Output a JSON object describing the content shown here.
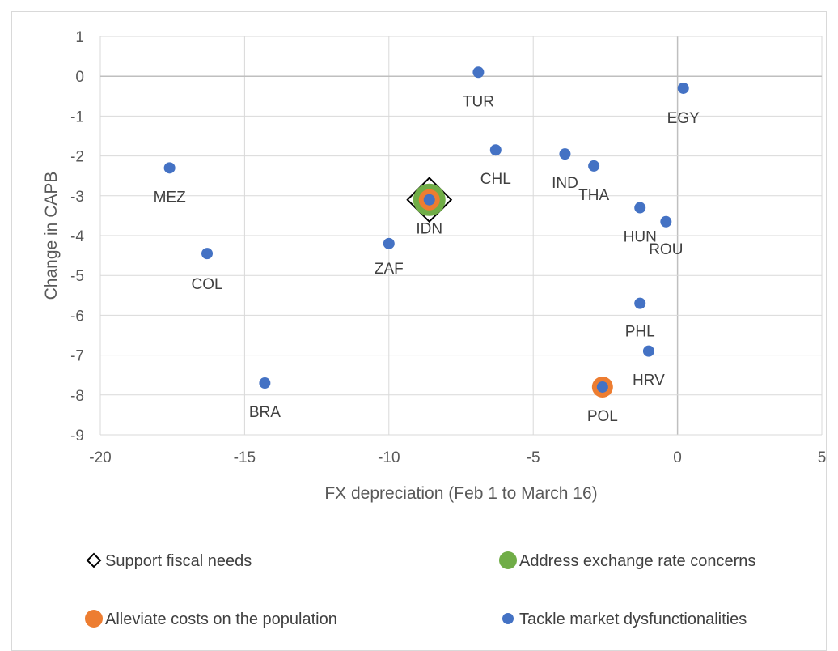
{
  "chart_data": {
    "type": "scatter",
    "xlabel": "FX depreciation (Feb 1 to March 16)",
    "ylabel": "Change in CAPB",
    "xlim": [
      -20,
      5
    ],
    "ylim": [
      -9,
      1
    ],
    "xticks": [
      -20,
      -15,
      -10,
      -5,
      0,
      5
    ],
    "yticks": [
      1,
      0,
      -1,
      -2,
      -3,
      -4,
      -5,
      -6,
      -7,
      -8,
      -9
    ],
    "grid": true,
    "legend_position": "bottom",
    "series": [
      {
        "name": "Support fiscal needs",
        "marker": "diamond-outline",
        "color": "#000000",
        "points": [
          {
            "x": -8.6,
            "y": -3.1,
            "label": ""
          }
        ]
      },
      {
        "name": "Address exchange rate concerns",
        "marker": "circle",
        "color": "#70ad47",
        "points": [
          {
            "x": -8.6,
            "y": -3.1,
            "label": ""
          }
        ]
      },
      {
        "name": "Alleviate costs on the population",
        "marker": "circle",
        "color": "#ed7d31",
        "points": [
          {
            "x": -8.6,
            "y": -3.1,
            "label": ""
          },
          {
            "x": -2.6,
            "y": -7.8,
            "label": ""
          }
        ]
      },
      {
        "name": "Tackle market dysfunctionalities",
        "marker": "circle",
        "color": "#4472c4",
        "points": [
          {
            "x": -17.6,
            "y": -2.3,
            "label": "MEZ"
          },
          {
            "x": -16.3,
            "y": -4.45,
            "label": "COL"
          },
          {
            "x": -14.3,
            "y": -7.7,
            "label": "BRA"
          },
          {
            "x": -10.0,
            "y": -4.2,
            "label": "ZAF"
          },
          {
            "x": -8.6,
            "y": -3.1,
            "label": "IDN"
          },
          {
            "x": -6.9,
            "y": 0.1,
            "label": "TUR"
          },
          {
            "x": -6.3,
            "y": -1.85,
            "label": "CHL"
          },
          {
            "x": -3.9,
            "y": -1.95,
            "label": "IND"
          },
          {
            "x": -2.9,
            "y": -2.25,
            "label": "THA"
          },
          {
            "x": -1.3,
            "y": -3.3,
            "label": "HUN"
          },
          {
            "x": -0.4,
            "y": -3.65,
            "label": "ROU"
          },
          {
            "x": 0.2,
            "y": -0.3,
            "label": "EGY"
          },
          {
            "x": -1.3,
            "y": -5.7,
            "label": "PHL"
          },
          {
            "x": -1.0,
            "y": -6.9,
            "label": "HRV"
          },
          {
            "x": -2.6,
            "y": -7.8,
            "label": "POL"
          }
        ]
      }
    ]
  }
}
